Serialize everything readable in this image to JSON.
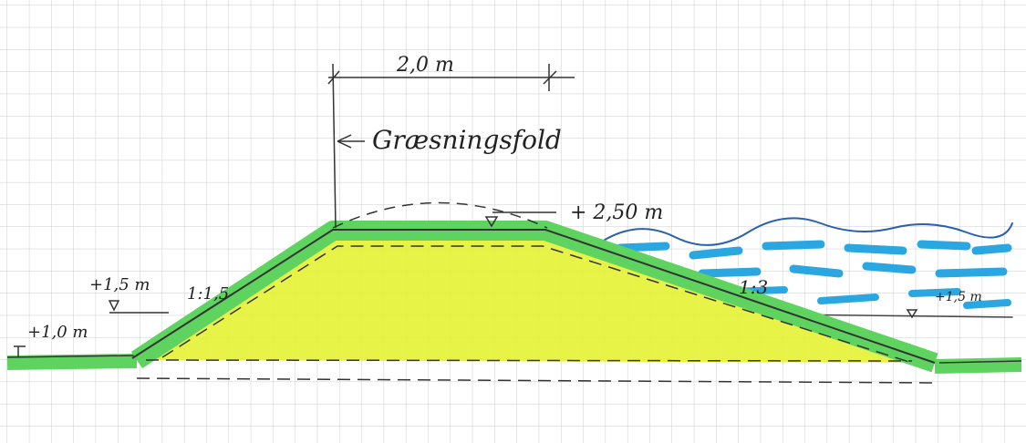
{
  "labels": {
    "crest_width": "2,0 m",
    "area": "Græsningsfold",
    "crest_level": "+ 2,50 m",
    "inner_level": "+1,5 m",
    "inner_slope": "1:1,5",
    "ground_level": "+1,0 m",
    "outer_slope": "1:3",
    "water_level": "+1,5 m"
  }
}
